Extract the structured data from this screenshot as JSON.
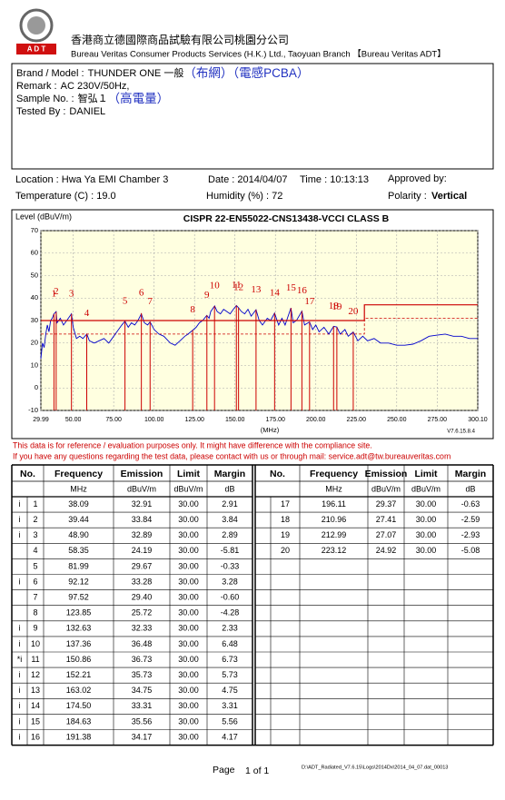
{
  "header": {
    "logo_text": "A D T",
    "company_zh": "香港商立德國際商品試驗有限公司桃園分公司",
    "company_en": "Bureau Veritas Consumer Products Services (H.K.) Ltd., Taoyuan Branch 【Bureau Veritas ADT】"
  },
  "info": [
    {
      "label": "Brand / Model :",
      "value": "THUNDER ONE 一般",
      "note": "（布網）（電感PCBA）"
    },
    {
      "label": "Remark :",
      "value": "AC 230V/50Hz,"
    },
    {
      "label": "Sample No. :",
      "value": "智弘１",
      "note": "（高電量）"
    },
    {
      "label": "Tested By :",
      "value": "DANIEL"
    }
  ],
  "conditions": {
    "location": "Location :  Hwa Ya EMI Chamber 3",
    "date": "Date : 2014/04/07",
    "time": "Time : 10:13:13",
    "approved": "Approved by:",
    "temperature": "Temperature (C) : 19.0",
    "humidity": "Humidity (%) :  72",
    "polarity_label": "Polarity :",
    "polarity": "Vertical"
  },
  "chart_data": {
    "type": "line",
    "title": "CISPR 22-EN55022-CNS13438-VCCI   CLASS B",
    "y_label": "Level (dBuV/m)",
    "x_label": "(MHz)",
    "version": "V7.6.15.8.4",
    "xlim": [
      29.99,
      300.1
    ],
    "ylim": [
      -10,
      70
    ],
    "xticks": [
      29.99,
      {
        "value": 50,
        "label": "50.00"
      },
      {
        "value": 75,
        "label": "75.00"
      },
      {
        "value": 100,
        "label": "100.00"
      },
      {
        "value": 125,
        "label": "125.00"
      },
      {
        "value": 150,
        "label": "150.00"
      },
      {
        "value": 175,
        "label": "175.00"
      },
      {
        "value": 200,
        "label": "200.00"
      },
      {
        "value": 225,
        "label": "225.00"
      },
      {
        "value": 250,
        "label": "250.00"
      },
      {
        "value": 275,
        "label": "275.00"
      },
      {
        "value": 300.1,
        "label": "300.10"
      }
    ],
    "yticks": [
      -10,
      0,
      10,
      20,
      30,
      40,
      50,
      60,
      70
    ],
    "grid": true,
    "trace": {
      "color": "#0000cc",
      "x": [
        30,
        31,
        32,
        33,
        34,
        35,
        36,
        37,
        38.1,
        39.4,
        40,
        42,
        44,
        46,
        48.9,
        50,
        52,
        54,
        56,
        58.4,
        60,
        63,
        66,
        69,
        72,
        75,
        78,
        80,
        82,
        84,
        86,
        88,
        90,
        92.1,
        94,
        96,
        97.5,
        100,
        103,
        106,
        110,
        113,
        116,
        119,
        121,
        123.9,
        126,
        128,
        130,
        132.6,
        134,
        135,
        137.4,
        139,
        141,
        143,
        145,
        147,
        149,
        150.9,
        152.2,
        154,
        156,
        158,
        160,
        163,
        165,
        167,
        170,
        172,
        174.5,
        177,
        179,
        181,
        184.6,
        186,
        188,
        191.4,
        193,
        196.1,
        198,
        200,
        202,
        205,
        208,
        211,
        213,
        215,
        218,
        220,
        223.1,
        226,
        229,
        232,
        236,
        240,
        245,
        250,
        255,
        260,
        265,
        270,
        275,
        280,
        285,
        290,
        295,
        300.1
      ],
      "values": [
        13,
        20,
        18,
        24,
        28,
        25,
        30,
        31,
        33,
        34,
        29,
        31,
        28,
        30,
        33,
        27,
        22,
        23,
        22,
        24,
        21,
        20,
        21,
        22,
        20,
        23,
        26,
        28,
        29.7,
        27,
        29,
        28,
        30,
        33,
        29,
        28,
        29.4,
        26,
        24,
        23,
        20,
        19,
        21,
        23,
        24,
        25.7,
        27,
        29,
        30,
        32.3,
        31,
        34,
        36.5,
        34,
        33,
        35,
        34,
        33,
        35,
        36.7,
        35.7,
        34,
        33,
        35,
        32,
        34.8,
        30,
        28,
        31,
        30,
        33.3,
        28,
        31,
        28,
        35.6,
        29,
        30,
        34.2,
        28,
        29.4,
        26,
        28,
        25,
        27,
        24,
        27.4,
        27.1,
        24,
        26,
        23,
        24.9,
        21,
        23,
        21,
        22,
        20,
        20,
        19,
        19,
        19.5,
        21,
        23,
        23.5,
        24,
        23,
        23,
        22,
        22
      ]
    },
    "limit": {
      "color": "#cc0000",
      "x": [
        29.99,
        230,
        230,
        300.1
      ],
      "values": [
        30,
        30,
        37,
        37
      ]
    },
    "margin_line": {
      "color": "#cc0000",
      "x": [
        29.99,
        230,
        230,
        300.1
      ],
      "values": [
        24,
        24,
        31,
        31
      ]
    }
  },
  "notes": [
    "This data is for reference / evaluation purposes only.  It might have difference with the compliance site.",
    "If you have any questions regarding the test data, please contact with us or through mail: service.adt@tw.bureauveritas.com"
  ],
  "table": {
    "columns": [
      "No.",
      "Frequency",
      "Emission",
      "Limit",
      "Margin"
    ],
    "units": [
      "MHz",
      "dBuV/m",
      "dBuV/m",
      "dB"
    ],
    "rows": [
      [
        "i",
        "1",
        "38.09",
        "32.91",
        "30.00",
        "2.91"
      ],
      [
        "i",
        "2",
        "39.44",
        "33.84",
        "30.00",
        "3.84"
      ],
      [
        "i",
        "3",
        "48.90",
        "32.89",
        "30.00",
        "2.89"
      ],
      [
        "",
        "4",
        "58.35",
        "24.19",
        "30.00",
        "-5.81"
      ],
      [
        "",
        "5",
        "81.99",
        "29.67",
        "30.00",
        "-0.33"
      ],
      [
        "i",
        "6",
        "92.12",
        "33.28",
        "30.00",
        "3.28"
      ],
      [
        "",
        "7",
        "97.52",
        "29.40",
        "30.00",
        "-0.60"
      ],
      [
        "",
        "8",
        "123.85",
        "25.72",
        "30.00",
        "-4.28"
      ],
      [
        "i",
        "9",
        "132.63",
        "32.33",
        "30.00",
        "2.33"
      ],
      [
        "i",
        "10",
        "137.36",
        "36.48",
        "30.00",
        "6.48"
      ],
      [
        "*i",
        "11",
        "150.86",
        "36.73",
        "30.00",
        "6.73"
      ],
      [
        "i",
        "12",
        "152.21",
        "35.73",
        "30.00",
        "5.73"
      ],
      [
        "i",
        "13",
        "163.02",
        "34.75",
        "30.00",
        "4.75"
      ],
      [
        "i",
        "14",
        "174.50",
        "33.31",
        "30.00",
        "3.31"
      ],
      [
        "i",
        "15",
        "184.63",
        "35.56",
        "30.00",
        "5.56"
      ],
      [
        "i",
        "16",
        "191.38",
        "34.17",
        "30.00",
        "4.17"
      ],
      [
        "",
        "17",
        "196.11",
        "29.37",
        "30.00",
        "-0.63"
      ],
      [
        "",
        "18",
        "210.96",
        "27.41",
        "30.00",
        "-2.59"
      ],
      [
        "",
        "19",
        "212.99",
        "27.07",
        "30.00",
        "-2.93"
      ],
      [
        "",
        "20",
        "223.12",
        "24.92",
        "30.00",
        "-5.08"
      ]
    ]
  },
  "footer": {
    "page": "Page",
    "page_no": "1 of 1",
    "file": "D:\\ADT_Radiated_V7.6.15\\Logs\\2014Dx\\2014_04_07.dat_00013"
  }
}
